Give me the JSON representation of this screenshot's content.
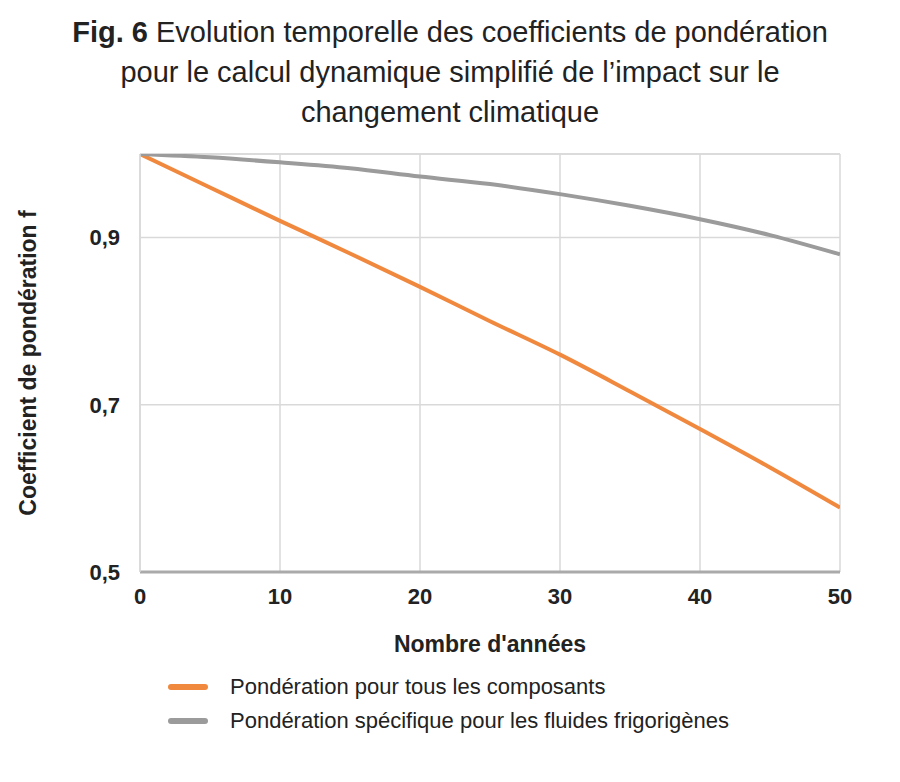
{
  "chart_data": {
    "type": "line",
    "title": "Fig. 6 Evolution temporelle des coefficients de pondération pour le calcul dynamique simplifié de l’impact sur le changement climatique",
    "x_label": "Nombre d'années",
    "y_label": "Coefficient de pondération f",
    "x": [
      0,
      5,
      10,
      15,
      20,
      25,
      30,
      35,
      40,
      45,
      50
    ],
    "series": [
      {
        "name": "Pondération pour tous les composants",
        "color": "#f0883e",
        "values": [
          1.0,
          0.96,
          0.92,
          0.881,
          0.841,
          0.8,
          0.76,
          0.716,
          0.671,
          0.625,
          0.577
        ]
      },
      {
        "name": "Pondération spécifique pour les fluides frigorigènes",
        "color": "#9b9b9b",
        "values": [
          1.0,
          0.996,
          0.99,
          0.983,
          0.973,
          0.964,
          0.952,
          0.938,
          0.922,
          0.903,
          0.88
        ]
      }
    ],
    "xlim": [
      0,
      50
    ],
    "xticks": [
      0,
      10,
      20,
      30,
      40,
      50
    ],
    "ylim": [
      0.5,
      1.0
    ],
    "yticks": [
      {
        "value": 0.5,
        "label": "0,5"
      },
      {
        "value": 0.7,
        "label": "0,7"
      },
      {
        "value": 0.9,
        "label": "0,9"
      }
    ],
    "grid": true,
    "legend": "bottom"
  }
}
